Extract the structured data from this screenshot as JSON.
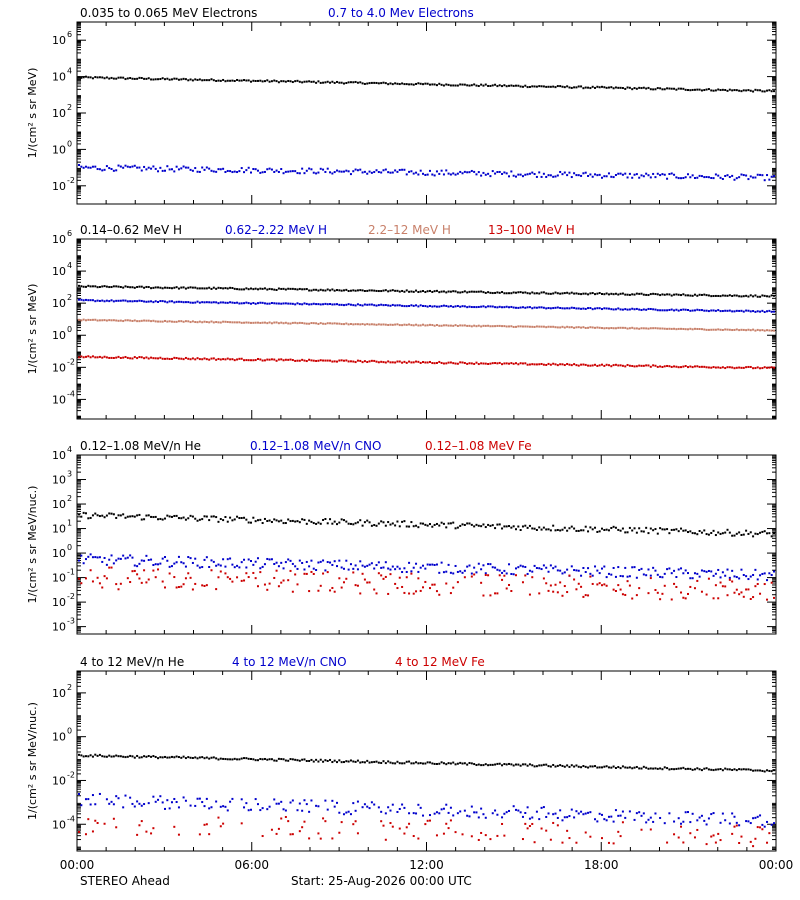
{
  "chart_data": [
    {
      "type": "scatter",
      "y_scale": "log",
      "ylabel": "1/(cm² s sr MeV)",
      "ylim": [
        0.001,
        10000000
      ],
      "y_ticks": [
        {
          "label": "10",
          "exp": "-2",
          "value": 0.01
        },
        {
          "label": "10",
          "exp": "0",
          "value": 1
        },
        {
          "label": "10",
          "exp": "2",
          "value": 100
        },
        {
          "label": "10",
          "exp": "4",
          "value": 10000
        },
        {
          "label": "10",
          "exp": "6",
          "value": 1000000
        }
      ],
      "series": [
        {
          "name": "0.035 to 0.065 MeV Electrons",
          "color": "#000000",
          "start": 9000,
          "end": 1600,
          "noise": 0.05,
          "sparse": 0.0
        },
        {
          "name": "0.7 to 4.0 Mev Electrons",
          "color": "#0000cc",
          "start": 0.1,
          "end": 0.028,
          "noise": 0.15,
          "sparse": 0.0
        }
      ]
    },
    {
      "type": "scatter",
      "y_scale": "log",
      "ylabel": "1/(cm² s sr MeV)",
      "ylim": [
        6e-06,
        1000000
      ],
      "y_ticks": [
        {
          "label": "10",
          "exp": "-4",
          "value": 0.0001
        },
        {
          "label": "10",
          "exp": "-2",
          "value": 0.01
        },
        {
          "label": "10",
          "exp": "0",
          "value": 1
        },
        {
          "label": "10",
          "exp": "2",
          "value": 100
        },
        {
          "label": "10",
          "exp": "4",
          "value": 10000
        },
        {
          "label": "10",
          "exp": "6",
          "value": 1000000
        }
      ],
      "series": [
        {
          "name": "0.14–0.62 MeV H",
          "color": "#000000",
          "start": 1100,
          "end": 270,
          "noise": 0.05,
          "sparse": 0.0
        },
        {
          "name": "0.62–2.22 MeV H",
          "color": "#0000cc",
          "start": 150,
          "end": 30,
          "noise": 0.04,
          "sparse": 0.0
        },
        {
          "name": "2.2–12 MeV H",
          "color": "#c8806a",
          "start": 9,
          "end": 2,
          "noise": 0.03,
          "sparse": 0.0
        },
        {
          "name": "13–100 MeV H",
          "color": "#cc0000",
          "start": 0.045,
          "end": 0.009,
          "noise": 0.05,
          "sparse": 0.0
        }
      ]
    },
    {
      "type": "scatter",
      "y_scale": "log",
      "ylabel": "1/(cm² s sr MeV/nuc.)",
      "ylim": [
        0.0005,
        10000
      ],
      "y_ticks": [
        {
          "label": "10",
          "exp": "-3",
          "value": 0.001
        },
        {
          "label": "10",
          "exp": "-2",
          "value": 0.01
        },
        {
          "label": "10",
          "exp": "-1",
          "value": 0.1
        },
        {
          "label": "10",
          "exp": "0",
          "value": 1
        },
        {
          "label": "10",
          "exp": "1",
          "value": 10
        },
        {
          "label": "10",
          "exp": "2",
          "value": 100
        },
        {
          "label": "10",
          "exp": "3",
          "value": 1000
        },
        {
          "label": "10",
          "exp": "4",
          "value": 10000
        }
      ],
      "series": [
        {
          "name": "0.12–1.08 MeV/n He",
          "color": "#000000",
          "start": 35,
          "end": 6,
          "noise": 0.12,
          "sparse": 0.0
        },
        {
          "name": "0.12–1.08 MeV/n CNO",
          "color": "#0000cc",
          "start": 0.55,
          "end": 0.12,
          "noise": 0.22,
          "sparse": 0.0
        },
        {
          "name": "0.12–1.08 MeV Fe",
          "color": "#cc0000",
          "start": 0.1,
          "end": 0.03,
          "noise": 0.45,
          "sparse": 0.3
        }
      ]
    },
    {
      "type": "scatter",
      "y_scale": "log",
      "ylabel": "1/(cm² s sr MeV/nuc.)",
      "ylim": [
        6e-06,
        1000
      ],
      "y_ticks": [
        {
          "label": "10",
          "exp": "-4",
          "value": 0.0001
        },
        {
          "label": "10",
          "exp": "-2",
          "value": 0.01
        },
        {
          "label": "10",
          "exp": "0",
          "value": 1
        },
        {
          "label": "10",
          "exp": "2",
          "value": 100
        }
      ],
      "series": [
        {
          "name": "4 to 12 MeV/n He",
          "color": "#000000",
          "start": 0.14,
          "end": 0.028,
          "noise": 0.05,
          "sparse": 0.0
        },
        {
          "name": "4 to 12 MeV/n CNO",
          "color": "#0000cc",
          "start": 0.0013,
          "end": 0.00015,
          "noise": 0.3,
          "sparse": 0.2
        },
        {
          "name": "4 to 12 MeV Fe",
          "color": "#cc0000",
          "start": 0.0001,
          "end": 3e-05,
          "noise": 0.5,
          "sparse": 0.6
        }
      ]
    }
  ],
  "x_axis": {
    "range_hours": [
      0,
      24
    ],
    "ticks": [
      {
        "label": "00:00",
        "hour": 0
      },
      {
        "label": "06:00",
        "hour": 6
      },
      {
        "label": "12:00",
        "hour": 12
      },
      {
        "label": "18:00",
        "hour": 18
      },
      {
        "label": "00:00",
        "hour": 24
      }
    ]
  },
  "footer": {
    "spacecraft": "STEREO Ahead",
    "start": "Start: 25-Aug-2026 00:00 UTC"
  }
}
